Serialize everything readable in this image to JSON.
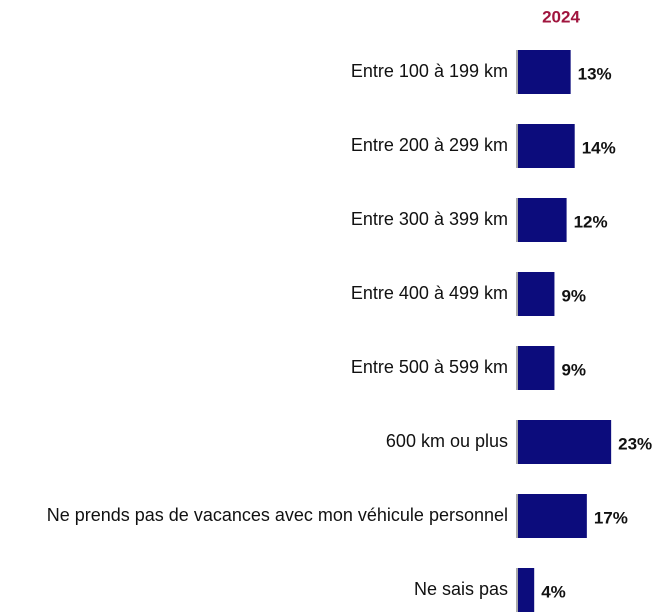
{
  "chart_data": {
    "type": "bar",
    "orientation": "horizontal",
    "categories": [
      "Entre 100 à 199 km",
      "Entre 200 à 299 km",
      "Entre 300 à 399 km",
      "Entre 400 à 499 km",
      "Entre 500 à 599 km",
      "600 km ou plus",
      "Ne prends pas de vacances avec mon véhicule personnel",
      "Ne sais pas"
    ],
    "series": [
      {
        "name": "2024",
        "color": "#0c0c7c",
        "name_color": "#a0153e",
        "values": [
          13,
          14,
          12,
          9,
          9,
          23,
          17,
          4
        ],
        "value_labels": [
          "13%",
          "14%",
          "12%",
          "9%",
          "9%",
          "23%",
          "17%",
          "4%"
        ]
      }
    ]
  }
}
